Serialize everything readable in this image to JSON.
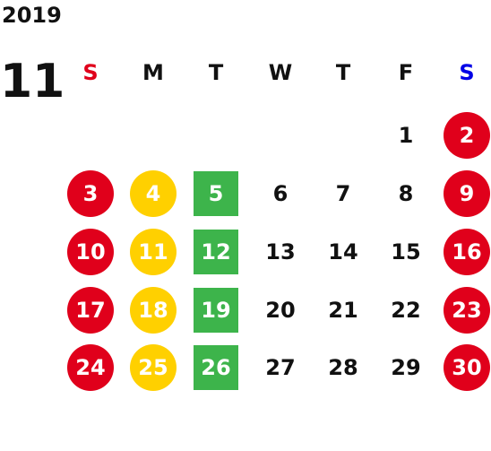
{
  "calendar": {
    "year": "2019",
    "month": "11",
    "weekdays": [
      {
        "label": "S",
        "color": "#e0001b"
      },
      {
        "label": "M",
        "color": "#111111"
      },
      {
        "label": "T",
        "color": "#111111"
      },
      {
        "label": "W",
        "color": "#111111"
      },
      {
        "label": "T",
        "color": "#111111"
      },
      {
        "label": "F",
        "color": "#111111"
      },
      {
        "label": "S",
        "color": "#0000e6"
      }
    ],
    "colors": {
      "red": "#e0001b",
      "yellow": "#ffd000",
      "green": "#3db44b",
      "plain": "#111111"
    },
    "days": [
      {
        "day": "1",
        "marker": "none"
      },
      {
        "day": "2",
        "marker": "red-circle"
      },
      {
        "day": "3",
        "marker": "red-circle"
      },
      {
        "day": "4",
        "marker": "yellow-circle"
      },
      {
        "day": "5",
        "marker": "green-square"
      },
      {
        "day": "6",
        "marker": "none"
      },
      {
        "day": "7",
        "marker": "none"
      },
      {
        "day": "8",
        "marker": "none"
      },
      {
        "day": "9",
        "marker": "red-circle"
      },
      {
        "day": "10",
        "marker": "red-circle"
      },
      {
        "day": "11",
        "marker": "yellow-circle"
      },
      {
        "day": "12",
        "marker": "green-square"
      },
      {
        "day": "13",
        "marker": "none"
      },
      {
        "day": "14",
        "marker": "none"
      },
      {
        "day": "15",
        "marker": "none"
      },
      {
        "day": "16",
        "marker": "red-circle"
      },
      {
        "day": "17",
        "marker": "red-circle"
      },
      {
        "day": "18",
        "marker": "yellow-circle"
      },
      {
        "day": "19",
        "marker": "green-square"
      },
      {
        "day": "20",
        "marker": "none"
      },
      {
        "day": "21",
        "marker": "none"
      },
      {
        "day": "22",
        "marker": "none"
      },
      {
        "day": "23",
        "marker": "red-circle"
      },
      {
        "day": "24",
        "marker": "red-circle"
      },
      {
        "day": "25",
        "marker": "yellow-circle"
      },
      {
        "day": "26",
        "marker": "green-square"
      },
      {
        "day": "27",
        "marker": "none"
      },
      {
        "day": "28",
        "marker": "none"
      },
      {
        "day": "29",
        "marker": "none"
      },
      {
        "day": "30",
        "marker": "red-circle"
      }
    ]
  }
}
